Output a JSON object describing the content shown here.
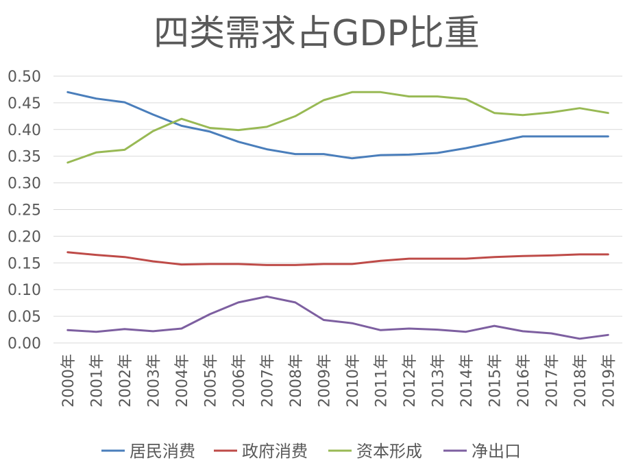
{
  "chart_data": {
    "type": "line",
    "title": "四类需求占GDP比重",
    "xlabel": "",
    "ylabel": "",
    "ylim": [
      0,
      0.5
    ],
    "yticks": [
      "0.00",
      "0.05",
      "0.10",
      "0.15",
      "0.20",
      "0.25",
      "0.30",
      "0.35",
      "0.40",
      "0.45",
      "0.50"
    ],
    "grid": true,
    "legend_position": "bottom",
    "categories": [
      "2000年",
      "2001年",
      "2002年",
      "2003年",
      "2004年",
      "2005年",
      "2006年",
      "2007年",
      "2008年",
      "2009年",
      "2010年",
      "2011年",
      "2012年",
      "2013年",
      "2014年",
      "2015年",
      "2016年",
      "2017年",
      "2018年",
      "2019年"
    ],
    "series": [
      {
        "name": "居民消费",
        "color": "#4a7ebb",
        "values": [
          0.47,
          0.458,
          0.451,
          0.428,
          0.407,
          0.396,
          0.377,
          0.363,
          0.354,
          0.354,
          0.346,
          0.352,
          0.353,
          0.356,
          0.365,
          0.376,
          0.387,
          0.387,
          0.387,
          0.387
        ]
      },
      {
        "name": "政府消费",
        "color": "#be4b48",
        "values": [
          0.17,
          0.165,
          0.161,
          0.153,
          0.147,
          0.148,
          0.148,
          0.146,
          0.146,
          0.148,
          0.148,
          0.154,
          0.158,
          0.158,
          0.158,
          0.161,
          0.163,
          0.164,
          0.166,
          0.166
        ]
      },
      {
        "name": "资本形成",
        "color": "#98b954",
        "values": [
          0.338,
          0.357,
          0.362,
          0.397,
          0.42,
          0.403,
          0.399,
          0.405,
          0.425,
          0.455,
          0.47,
          0.47,
          0.462,
          0.462,
          0.457,
          0.431,
          0.427,
          0.432,
          0.44,
          0.431
        ]
      },
      {
        "name": "净出口",
        "color": "#7d5fa0",
        "values": [
          0.024,
          0.021,
          0.026,
          0.022,
          0.027,
          0.054,
          0.076,
          0.087,
          0.076,
          0.043,
          0.037,
          0.024,
          0.027,
          0.025,
          0.021,
          0.032,
          0.022,
          0.018,
          0.008,
          0.015
        ]
      }
    ]
  }
}
